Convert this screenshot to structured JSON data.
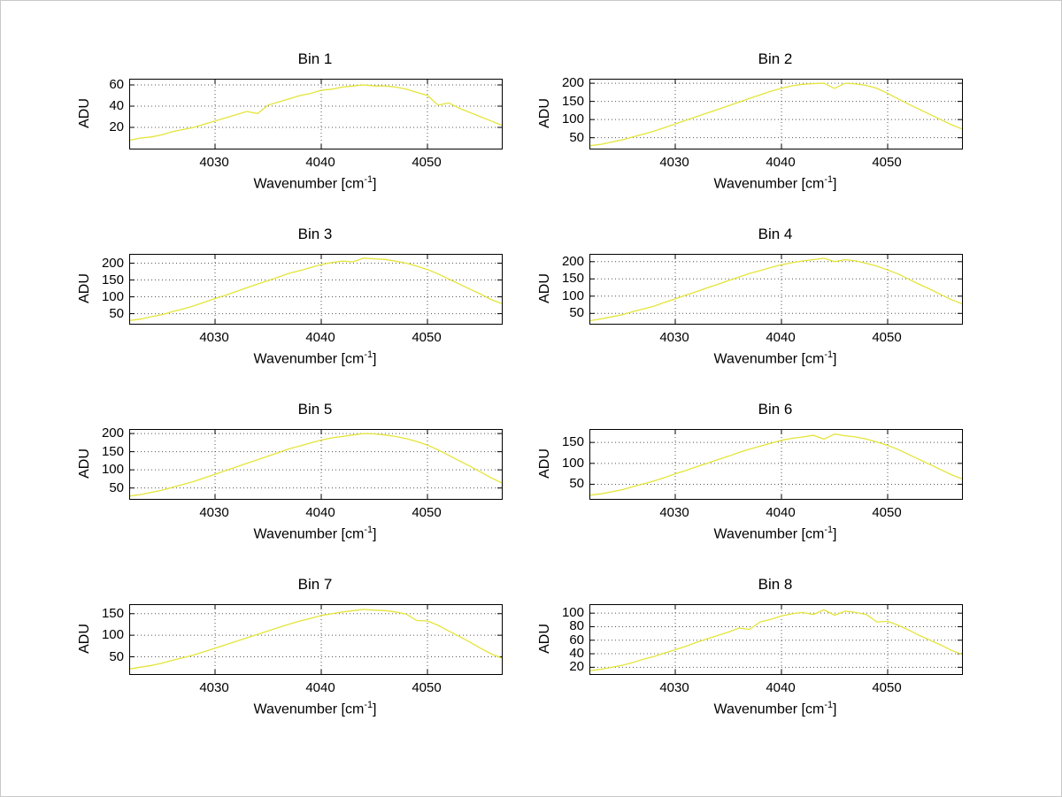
{
  "figure": {
    "background": "#ffffff",
    "axis_color": "#000000",
    "grid_color": "#555555",
    "frame_color": "#c9c9c9"
  },
  "xlabel_parts": {
    "pre": "Wavenumber [cm",
    "sup": "-1",
    "post": "]"
  },
  "chart_data": {
    "type": "line",
    "layout": "4x2 grid of subplots",
    "title": "",
    "xlabel": "Wavenumber [cm^-1]",
    "ylabel": "ADU",
    "line_color": "#e4e43a",
    "grid": "dotted",
    "legend": "none",
    "xlim": [
      4022,
      4057
    ],
    "xticks": [
      4030,
      4040,
      4050
    ],
    "x": [
      4022,
      4023,
      4024,
      4025,
      4026,
      4027,
      4028,
      4029,
      4030,
      4031,
      4032,
      4033,
      4034,
      4035,
      4036,
      4037,
      4038,
      4039,
      4040,
      4041,
      4042,
      4043,
      4044,
      4045,
      4046,
      4047,
      4048,
      4049,
      4050,
      4051,
      4052,
      4053,
      4054,
      4055,
      4056,
      4057
    ],
    "subplots": [
      {
        "title": "Bin 1",
        "ylim": [
          0,
          65
        ],
        "yticks": [
          20,
          40,
          60
        ],
        "y": [
          8,
          10,
          11,
          13,
          16,
          18,
          20,
          23,
          26,
          29,
          32,
          35,
          33,
          41,
          44,
          47,
          50,
          52,
          55,
          56,
          58,
          59,
          60,
          59,
          59,
          58,
          56,
          53,
          50,
          41,
          43,
          38,
          34,
          30,
          26,
          22
        ]
      },
      {
        "title": "Bin 2",
        "ylim": [
          20,
          210
        ],
        "yticks": [
          50,
          100,
          150,
          200
        ],
        "y": [
          28,
          32,
          38,
          44,
          52,
          60,
          68,
          78,
          88,
          98,
          108,
          118,
          128,
          138,
          148,
          158,
          168,
          178,
          186,
          193,
          197,
          199,
          200,
          186,
          200,
          198,
          194,
          186,
          172,
          157,
          142,
          128,
          114,
          100,
          86,
          74
        ]
      },
      {
        "title": "Bin 3",
        "ylim": [
          20,
          225
        ],
        "yticks": [
          50,
          100,
          150,
          200
        ],
        "y": [
          30,
          34,
          41,
          47,
          56,
          64,
          73,
          84,
          95,
          105,
          116,
          127,
          138,
          148,
          159,
          170,
          178,
          187,
          196,
          202,
          206,
          204,
          215,
          213,
          211,
          206,
          200,
          191,
          181,
          168,
          153,
          138,
          123,
          108,
          92,
          80
        ]
      },
      {
        "title": "Bin 4",
        "ylim": [
          20,
          220
        ],
        "yticks": [
          50,
          100,
          150,
          200
        ],
        "y": [
          29,
          34,
          40,
          46,
          55,
          63,
          71,
          82,
          92,
          103,
          113,
          124,
          134,
          145,
          155,
          166,
          174,
          183,
          191,
          197,
          202,
          206,
          210,
          200,
          206,
          202,
          195,
          187,
          176,
          164,
          149,
          134,
          120,
          105,
          90,
          78
        ]
      },
      {
        "title": "Bin 5",
        "ylim": [
          20,
          210
        ],
        "yticks": [
          50,
          100,
          150,
          200
        ],
        "y": [
          28,
          32,
          38,
          44,
          52,
          60,
          68,
          78,
          88,
          98,
          108,
          118,
          128,
          138,
          148,
          158,
          166,
          174,
          182,
          188,
          192,
          196,
          200,
          199,
          196,
          192,
          186,
          178,
          168,
          155,
          140,
          125,
          110,
          94,
          78,
          64
        ]
      },
      {
        "title": "Bin 6",
        "ylim": [
          15,
          180
        ],
        "yticks": [
          50,
          100,
          150
        ],
        "y": [
          24,
          27,
          32,
          37,
          44,
          51,
          58,
          66,
          75,
          83,
          92,
          100,
          109,
          117,
          126,
          134,
          141,
          148,
          155,
          160,
          163,
          167,
          158,
          170,
          166,
          163,
          158,
          151,
          143,
          133,
          121,
          109,
          97,
          85,
          73,
          63
        ]
      },
      {
        "title": "Bin 7",
        "ylim": [
          10,
          170
        ],
        "yticks": [
          50,
          100,
          150
        ],
        "y": [
          22,
          26,
          30,
          35,
          42,
          48,
          54,
          62,
          70,
          78,
          86,
          94,
          102,
          110,
          118,
          126,
          133,
          139,
          146,
          150,
          154,
          157,
          160,
          158,
          157,
          154,
          149,
          134,
          133,
          123,
          110,
          97,
          84,
          70,
          57,
          47
        ]
      },
      {
        "title": "Bin 8",
        "ylim": [
          10,
          112
        ],
        "yticks": [
          20,
          40,
          60,
          80,
          100
        ],
        "y": [
          15,
          17,
          20,
          23,
          27,
          32,
          36,
          41,
          46,
          51,
          57,
          62,
          67,
          72,
          78,
          76,
          87,
          91,
          96,
          99,
          101,
          98,
          105,
          97,
          103,
          101,
          98,
          87,
          88,
          82,
          75,
          67,
          60,
          53,
          45,
          39
        ]
      }
    ]
  }
}
